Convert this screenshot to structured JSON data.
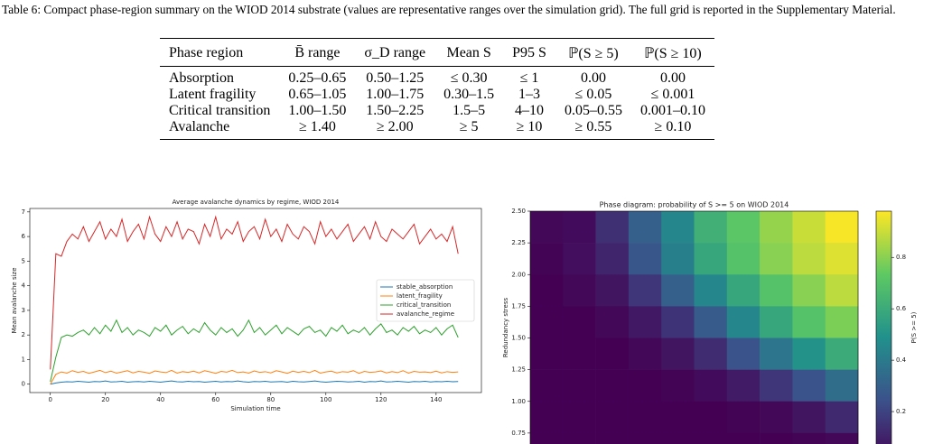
{
  "caption": "Table 6: Compact phase-region summary on the WIOD 2014 substrate (values are representative ranges over the simulation grid). The full grid is reported in the Supplementary Material.",
  "table": {
    "header": [
      "Phase region",
      "B̄ range",
      "σ_D range",
      "Mean S",
      "P95 S",
      "ℙ(S ≥ 5)",
      "ℙ(S ≥ 10)"
    ],
    "rows": [
      [
        "Absorption",
        "0.25–0.65",
        "0.50–1.25",
        "≤ 0.30",
        "≤ 1",
        "0.00",
        "0.00"
      ],
      [
        "Latent fragility",
        "0.65–1.05",
        "1.00–1.75",
        "0.30–1.5",
        "1–3",
        "≤ 0.05",
        "≤ 0.001"
      ],
      [
        "Critical transition",
        "1.00–1.50",
        "1.50–2.25",
        "1.5–5",
        "4–10",
        "0.05–0.55",
        "0.001–0.10"
      ],
      [
        "Avalanche",
        "≥ 1.40",
        "≥ 2.00",
        "≥ 5",
        "≥ 10",
        "≥ 0.55",
        "≥ 0.10"
      ]
    ]
  },
  "chart_data": [
    {
      "type": "line",
      "title": "Average avalanche dynamics by regime, WIOD 2014",
      "xlabel": "Simulation time",
      "ylabel": "Mean avalanche size",
      "xlim": [
        -7.45,
        156.45
      ],
      "ylim": [
        -0.34,
        7.14
      ],
      "xticks": [
        0,
        20,
        40,
        60,
        80,
        100,
        120,
        140
      ],
      "yticks": [
        0,
        1,
        2,
        3,
        4,
        5,
        6,
        7
      ],
      "legend": "center right",
      "x": [
        0,
        2,
        4,
        6,
        8,
        10,
        12,
        14,
        16,
        18,
        20,
        22,
        24,
        26,
        28,
        30,
        32,
        34,
        36,
        38,
        40,
        42,
        44,
        46,
        48,
        50,
        52,
        54,
        56,
        58,
        60,
        62,
        64,
        66,
        68,
        70,
        72,
        74,
        76,
        78,
        80,
        82,
        84,
        86,
        88,
        90,
        92,
        94,
        96,
        98,
        100,
        102,
        104,
        106,
        108,
        110,
        112,
        114,
        116,
        118,
        120,
        122,
        124,
        126,
        128,
        130,
        132,
        134,
        136,
        138,
        140,
        142,
        144,
        146,
        148
      ],
      "series": [
        {
          "name": "stable_absorption",
          "color": "#1f77b4",
          "values": [
            0.0,
            0.05,
            0.08,
            0.1,
            0.09,
            0.12,
            0.1,
            0.08,
            0.11,
            0.1,
            0.13,
            0.09,
            0.1,
            0.12,
            0.08,
            0.1,
            0.11,
            0.09,
            0.12,
            0.1,
            0.08,
            0.11,
            0.13,
            0.1,
            0.09,
            0.12,
            0.1,
            0.11,
            0.08,
            0.1,
            0.12,
            0.09,
            0.11,
            0.1,
            0.13,
            0.1,
            0.08,
            0.11,
            0.1,
            0.12,
            0.09,
            0.1,
            0.11,
            0.08,
            0.12,
            0.1,
            0.09,
            0.11,
            0.13,
            0.1,
            0.08,
            0.1,
            0.12,
            0.11,
            0.09,
            0.1,
            0.12,
            0.08,
            0.11,
            0.1,
            0.13,
            0.09,
            0.1,
            0.12,
            0.1,
            0.08,
            0.11,
            0.1,
            0.12,
            0.09,
            0.11,
            0.1,
            0.12,
            0.1,
            0.11
          ]
        },
        {
          "name": "latent_fragility",
          "color": "#ff7f0e",
          "values": [
            0.0,
            0.4,
            0.5,
            0.45,
            0.55,
            0.48,
            0.52,
            0.44,
            0.5,
            0.56,
            0.47,
            0.53,
            0.45,
            0.5,
            0.55,
            0.46,
            0.52,
            0.49,
            0.44,
            0.54,
            0.5,
            0.47,
            0.56,
            0.45,
            0.51,
            0.48,
            0.53,
            0.46,
            0.55,
            0.5,
            0.44,
            0.52,
            0.49,
            0.56,
            0.47,
            0.5,
            0.45,
            0.54,
            0.48,
            0.51,
            0.46,
            0.55,
            0.5,
            0.44,
            0.53,
            0.48,
            0.52,
            0.47,
            0.56,
            0.45,
            0.5,
            0.53,
            0.46,
            0.51,
            0.49,
            0.55,
            0.44,
            0.52,
            0.48,
            0.5,
            0.54,
            0.46,
            0.51,
            0.47,
            0.55,
            0.45,
            0.52,
            0.49,
            0.5,
            0.47,
            0.53,
            0.46,
            0.51,
            0.48,
            0.5
          ]
        },
        {
          "name": "critical_transition",
          "color": "#2ca02c",
          "values": [
            0.1,
            1.1,
            1.9,
            2.0,
            1.95,
            2.1,
            2.2,
            2.0,
            2.3,
            2.05,
            2.4,
            2.15,
            2.6,
            2.1,
            2.3,
            2.0,
            2.2,
            2.1,
            1.95,
            2.3,
            2.15,
            2.4,
            2.0,
            2.2,
            2.35,
            2.05,
            2.25,
            2.1,
            2.5,
            2.2,
            2.0,
            2.3,
            2.1,
            2.25,
            1.95,
            2.2,
            2.6,
            2.1,
            2.3,
            2.0,
            2.2,
            2.4,
            2.05,
            2.3,
            2.15,
            2.0,
            2.25,
            2.35,
            2.1,
            2.2,
            1.95,
            2.3,
            2.15,
            2.4,
            2.05,
            2.2,
            2.1,
            2.3,
            2.0,
            2.25,
            2.45,
            2.1,
            2.2,
            2.0,
            2.3,
            2.15,
            2.35,
            2.05,
            2.2,
            2.1,
            2.3,
            2.0,
            2.25,
            2.4,
            1.9
          ]
        },
        {
          "name": "avalanche_regime",
          "color": "#d62728",
          "values": [
            0.6,
            5.3,
            5.2,
            5.8,
            6.1,
            5.9,
            6.4,
            5.8,
            6.2,
            6.6,
            5.9,
            6.3,
            6.0,
            6.7,
            5.8,
            6.2,
            6.5,
            5.9,
            6.8,
            6.1,
            5.8,
            6.4,
            6.0,
            6.6,
            5.9,
            6.3,
            6.2,
            5.7,
            6.5,
            6.0,
            6.8,
            5.9,
            6.3,
            6.1,
            6.6,
            5.8,
            6.2,
            6.4,
            5.9,
            6.7,
            6.0,
            6.3,
            5.8,
            6.5,
            6.1,
            5.9,
            6.4,
            6.2,
            5.7,
            6.6,
            6.0,
            6.3,
            5.9,
            6.2,
            6.5,
            5.8,
            6.1,
            6.4,
            5.9,
            6.6,
            6.0,
            5.8,
            6.3,
            6.1,
            5.9,
            6.2,
            6.5,
            5.7,
            6.0,
            6.3,
            5.9,
            6.1,
            5.8,
            6.4,
            5.3
          ]
        }
      ]
    },
    {
      "type": "heatmap",
      "title": "Phase diagram: probability of S >= 5 on WIOD 2014",
      "ylabel": "Redundancy stress",
      "colorbar_label": "P(S >= 5)",
      "ylim": [
        0.5,
        2.5
      ],
      "yticks": [
        0.75,
        {
          "value": 1.0,
          "label": "1.00"
        },
        1.25,
        {
          "value": 1.5,
          "label": "1.50"
        },
        1.75,
        {
          "value": 2.0,
          "label": "2.00"
        },
        2.25,
        {
          "value": 2.5,
          "label": "2.50"
        }
      ],
      "y_edges": [
        2.5,
        2.25,
        2.0,
        1.75,
        1.5,
        1.25,
        1.0,
        0.75,
        0.5
      ],
      "colormap": "viridis",
      "clim": [
        0,
        0.98
      ],
      "cticks": [
        0.2,
        0.4,
        0.6,
        0.8
      ],
      "values": [
        [
          0.02,
          0.03,
          0.14,
          0.3,
          0.45,
          0.62,
          0.72,
          0.82,
          0.9,
          0.97
        ],
        [
          0.01,
          0.04,
          0.11,
          0.26,
          0.42,
          0.58,
          0.7,
          0.8,
          0.88,
          0.93
        ],
        [
          0.0,
          0.02,
          0.06,
          0.16,
          0.3,
          0.45,
          0.58,
          0.7,
          0.8,
          0.88
        ],
        [
          0.0,
          0.0,
          0.02,
          0.07,
          0.15,
          0.28,
          0.45,
          0.58,
          0.7,
          0.78
        ],
        [
          0.0,
          0.0,
          0.0,
          0.02,
          0.06,
          0.13,
          0.25,
          0.38,
          0.5,
          0.6
        ],
        [
          0.0,
          0.0,
          0.0,
          0.0,
          0.01,
          0.03,
          0.08,
          0.16,
          0.25,
          0.35
        ],
        [
          0.0,
          0.0,
          0.0,
          0.0,
          0.0,
          0.0,
          0.01,
          0.02,
          0.06,
          0.12
        ],
        [
          0.0,
          0.0,
          0.0,
          0.0,
          0.0,
          0.0,
          0.0,
          0.0,
          0.01,
          0.02
        ]
      ]
    }
  ]
}
